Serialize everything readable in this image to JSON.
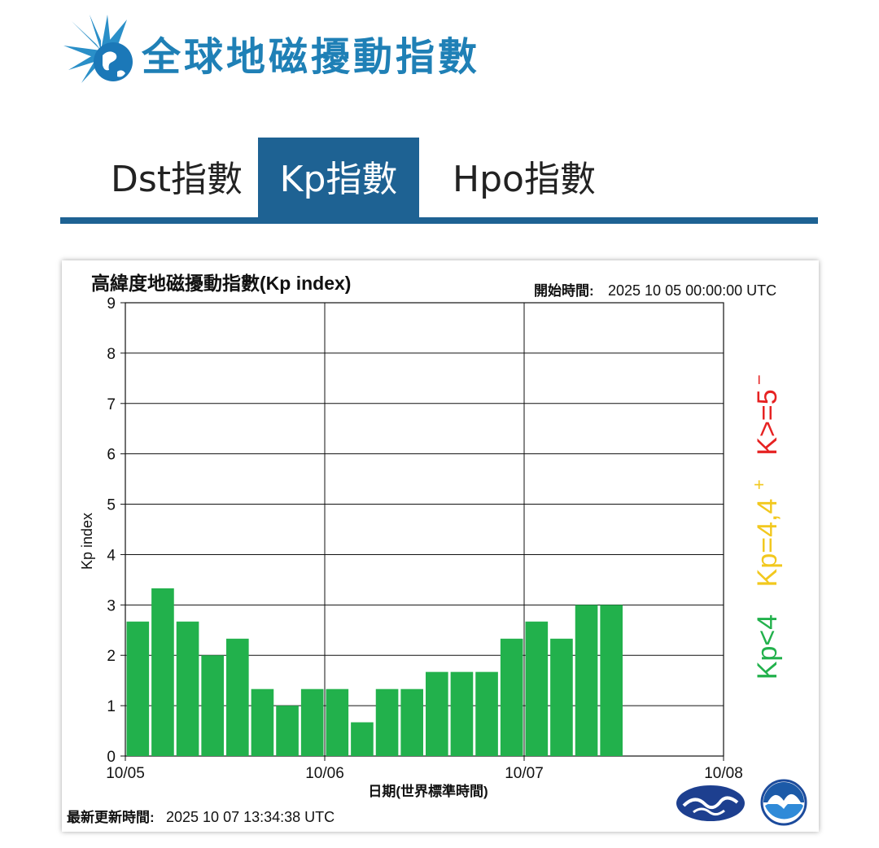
{
  "header": {
    "title": "全球地磁擾動指數"
  },
  "tabs": [
    {
      "label": "Dst指數",
      "active": false
    },
    {
      "label": "Kp指數",
      "active": true
    },
    {
      "label": "Hpo指數",
      "active": false
    }
  ],
  "colors": {
    "brand_blue": "#1f80b6",
    "tab_active": "#1e6293",
    "bar_green": "#22b14c",
    "legend_yellow": "#f2c81e",
    "legend_red": "#e62222"
  },
  "chart_data": {
    "type": "bar",
    "title": "高緯度地磁擾動指數(Kp index)",
    "start_label": "開始時間:",
    "start_value": "2025 10 05 00:00:00 UTC",
    "xlabel": "日期(世界標準時間)",
    "ylabel": "Kp index",
    "ylim": [
      0,
      9
    ],
    "yticks": [
      "0",
      "1",
      "2",
      "3",
      "4",
      "5",
      "6",
      "7",
      "8",
      "9"
    ],
    "xtick_labels": [
      "10/05",
      "10/06",
      "10/07",
      "10/08"
    ],
    "grid": true,
    "values": [
      2.67,
      3.33,
      2.67,
      2.0,
      2.33,
      1.33,
      1.0,
      1.33,
      1.33,
      0.67,
      1.33,
      1.33,
      1.67,
      1.67,
      1.67,
      2.33,
      2.67,
      2.33,
      3.0,
      3.0
    ],
    "legend": [
      {
        "text": "Kp<4",
        "color": "#22b14c"
      },
      {
        "text": "Kp=4,4",
        "sup": "+",
        "color": "#f2c81e"
      },
      {
        "text": "K>=5",
        "sup": "−",
        "color": "#e62222"
      }
    ],
    "updated_label": "最新更新時間:",
    "updated_value": "2025 10 07 13:34:38 UTC"
  }
}
